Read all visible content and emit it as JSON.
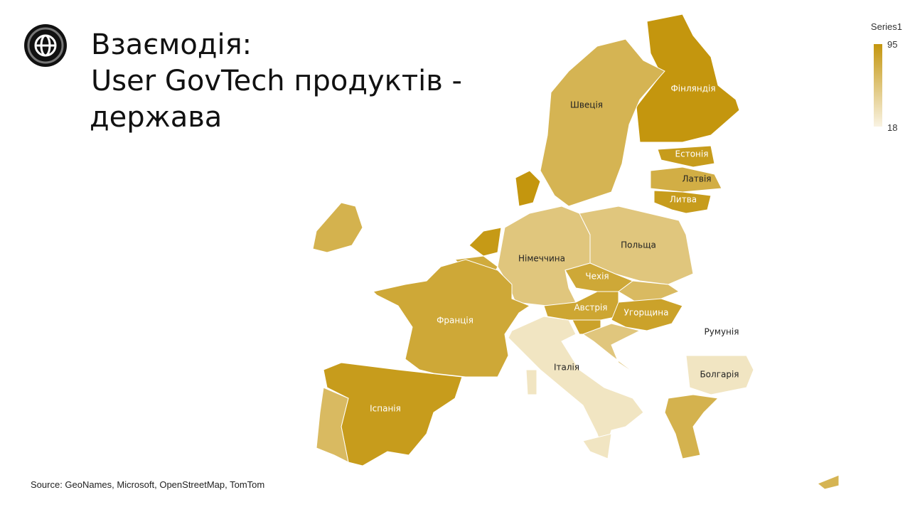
{
  "header": {
    "title_lines": [
      "Взаємодія:",
      "User GovTech продуктів -",
      "держава"
    ]
  },
  "source": "Source: GeoNames, Microsoft, OpenStreetMap, TomTom",
  "map": {
    "type": "choropleth",
    "legend_title": "Series1",
    "color_min": "#f9f3e3",
    "color_max": "#c4960e",
    "range": {
      "min": 18,
      "max": 95
    },
    "regions": [
      {
        "label": "Фінляндія",
        "value": 95
      },
      {
        "label": "Швеція",
        "value": 70
      },
      {
        "label": "Естонія",
        "value": 90
      },
      {
        "label": "Латвія",
        "value": 75
      },
      {
        "label": "Литва",
        "value": 90
      },
      {
        "label": null,
        "value": 95
      },
      {
        "label": null,
        "value": 92
      },
      {
        "label": null,
        "value": 78
      },
      {
        "label": null,
        "value": 80
      },
      {
        "label": "Німеччина",
        "value": 55
      },
      {
        "label": "Польща",
        "value": 55
      },
      {
        "label": "Чехія",
        "value": 80
      },
      {
        "label": null,
        "value": 65
      },
      {
        "label": "Австрія",
        "value": 82
      },
      {
        "label": "Угорщина",
        "value": 85
      },
      {
        "label": null,
        "value": 85
      },
      {
        "label": null,
        "value": 55
      },
      {
        "label": "Франція",
        "value": 80
      },
      {
        "label": "Іспанія",
        "value": 90
      },
      {
        "label": null,
        "value": 65
      },
      {
        "label": "Італія",
        "value": 30
      },
      {
        "label": "Болгарія",
        "value": 30
      },
      {
        "label": null,
        "value": 72
      },
      {
        "label": null,
        "value": 72
      },
      {
        "label": null,
        "value": 70
      },
      {
        "label": "Румунія",
        "value": null
      }
    ]
  }
}
